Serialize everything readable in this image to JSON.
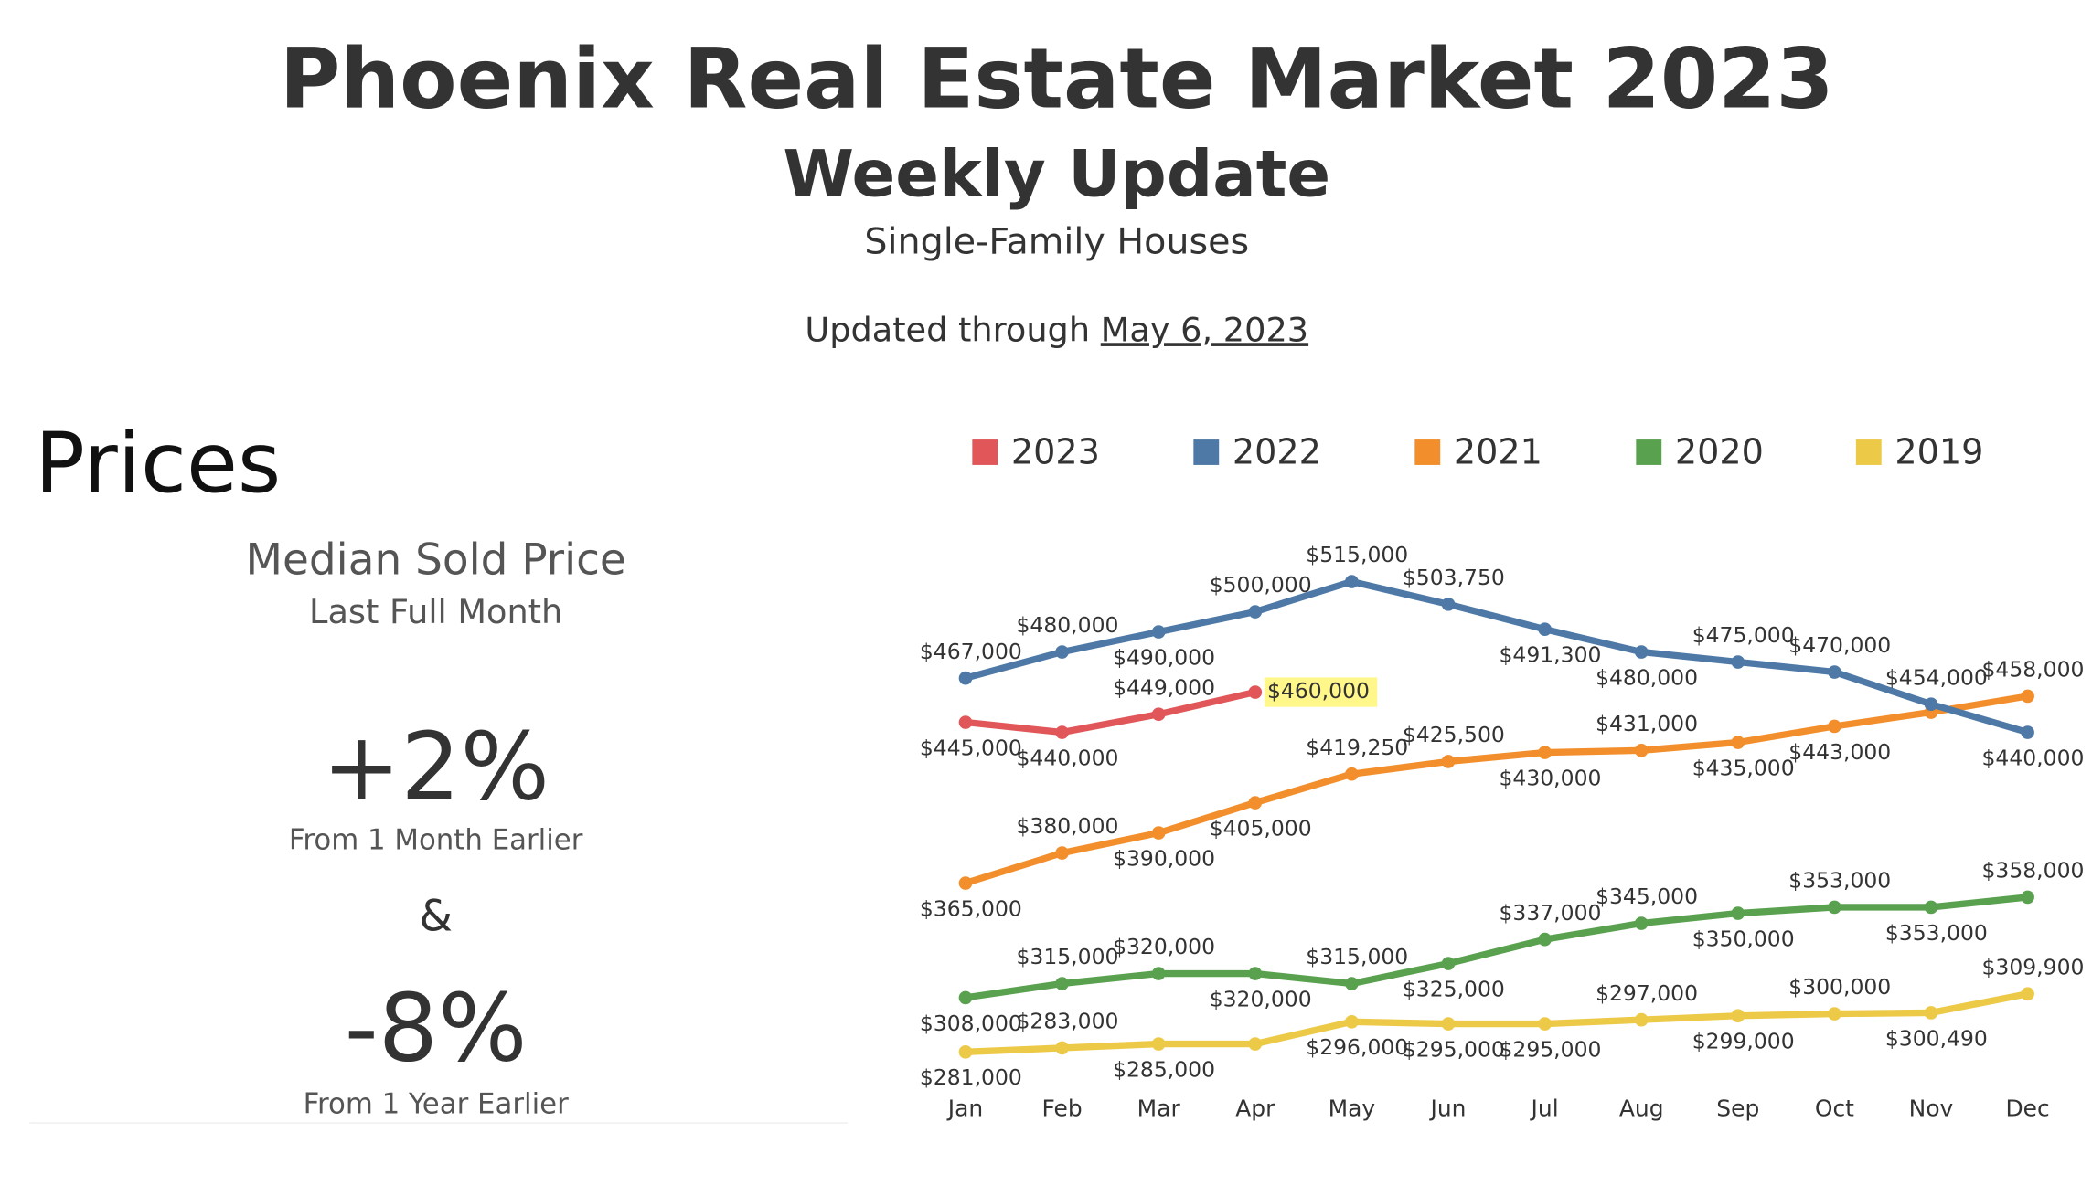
{
  "header": {
    "title": "Phoenix Real Estate Market 2023",
    "subtitle": "Weekly Update",
    "segment": "Single-Family Houses",
    "update_text": "Updated through",
    "update_date": "May 6, 2023"
  },
  "section_title": "Prices",
  "kpi": {
    "title": "Median Sold Price",
    "subtitle": "Last Full Month",
    "change_month": "+2%",
    "change_month_label": "From 1 Month Earlier",
    "joiner": "&",
    "change_year": "-8%",
    "change_year_label": "From 1 Year Earlier"
  },
  "chart_data": {
    "type": "line",
    "categories": [
      "Jan",
      "Feb",
      "Mar",
      "Apr",
      "May",
      "Jun",
      "Jul",
      "Aug",
      "Sep",
      "Oct",
      "Nov",
      "Dec"
    ],
    "ylim": [
      265000,
      540000
    ],
    "legend": "top",
    "series": [
      {
        "name": "2023",
        "color": "#e15759",
        "values": [
          445000,
          440000,
          449000,
          460000,
          null,
          null,
          null,
          null,
          null,
          null,
          null,
          null
        ],
        "value_labels": [
          "$445,000",
          "$440,000",
          "$449,000",
          "$460,000",
          null,
          null,
          null,
          null,
          null,
          null,
          null,
          null
        ]
      },
      {
        "name": "2022",
        "color": "#4e79a7",
        "values": [
          467000,
          480000,
          490000,
          500000,
          515000,
          503750,
          491300,
          480000,
          475000,
          470000,
          454000,
          440000
        ],
        "value_labels": [
          "$467,000",
          "$480,000",
          "$490,000",
          "$500,000",
          "$515,000",
          "$503,750",
          "$491,300",
          "$480,000",
          "$475,000",
          "$470,000",
          "$454,000",
          "$440,000"
        ]
      },
      {
        "name": "2021",
        "color": "#f28e2b",
        "values": [
          365000,
          380000,
          390000,
          405000,
          419250,
          425500,
          430000,
          431000,
          435000,
          443000,
          450000,
          458000
        ],
        "value_labels": [
          "$365,000",
          "$380,000",
          "$390,000",
          "$405,000",
          "$419,250",
          "$425,500",
          "$430,000",
          "$431,000",
          "$435,000",
          "$443,000",
          null,
          "$458,000"
        ]
      },
      {
        "name": "2020",
        "color": "#59a14f",
        "values": [
          308000,
          315000,
          320000,
          320000,
          315000,
          325000,
          337000,
          345000,
          350000,
          353000,
          353000,
          358000
        ],
        "value_labels": [
          "$308,000",
          "$315,000",
          "$320,000",
          "$320,000",
          "$315,000",
          "$325,000",
          "$337,000",
          "$345,000",
          "$350,000",
          "$353,000",
          "$353,000",
          "$358,000"
        ]
      },
      {
        "name": "2019",
        "color": "#edc948",
        "values": [
          281000,
          283000,
          285000,
          285000,
          296000,
          295000,
          295000,
          297000,
          299000,
          300000,
          300490,
          309900
        ],
        "value_labels": [
          "$281,000",
          "$283,000",
          "$285,000",
          null,
          "$296,000",
          "$295,000",
          "$295,000",
          "$297,000",
          "$299,000",
          "$300,000",
          "$300,490",
          "$309,900"
        ]
      }
    ]
  }
}
